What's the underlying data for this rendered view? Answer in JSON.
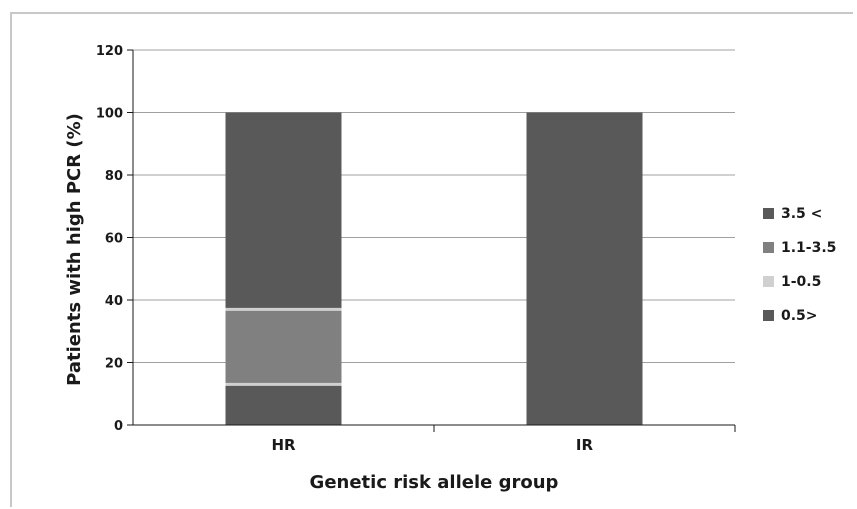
{
  "chart_data": {
    "type": "bar",
    "stacked": true,
    "title": "",
    "xlabel": "Genetic risk allele group",
    "ylabel": "Patients with high PCR (%)",
    "ylim": [
      0,
      120
    ],
    "yticks": [
      0,
      20,
      40,
      60,
      80,
      100,
      120
    ],
    "grid": true,
    "legend_position": "right",
    "categories": [
      "HR",
      "IR"
    ],
    "series": [
      {
        "name": "0.5>",
        "color": "#595959",
        "values": [
          13,
          100
        ]
      },
      {
        "name": "1-0.5",
        "color": "#d0d0d0",
        "values": [
          0,
          0
        ]
      },
      {
        "name": "1.1-3.5",
        "color": "#808080",
        "values": [
          24,
          0
        ]
      },
      {
        "name": "3.5 <",
        "color": "#595959",
        "values": [
          63,
          0
        ]
      }
    ],
    "legend_order": [
      "3.5 <",
      "1.1-3.5",
      "1-0.5",
      "0.5>"
    ]
  }
}
